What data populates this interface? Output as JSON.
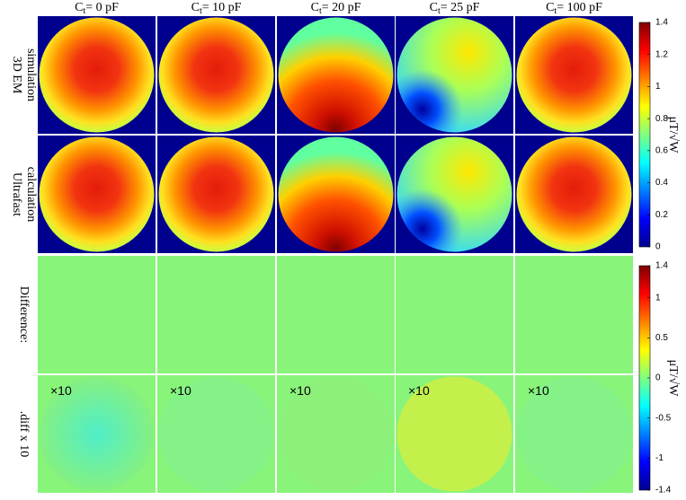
{
  "columns": [
    {
      "main": "C",
      "sub": "t",
      "rest": "= 0 pF"
    },
    {
      "main": "C",
      "sub": "t",
      "rest": "= 10 pF"
    },
    {
      "main": "C",
      "sub": "t",
      "rest": "= 20 pF"
    },
    {
      "main": "C",
      "sub": "t",
      "rest": "= 25 pF"
    },
    {
      "main": "C",
      "sub": "t",
      "rest": "= 100 pF"
    }
  ],
  "rows": [
    {
      "lines": [
        "3D EM",
        "simulation"
      ]
    },
    {
      "lines": [
        "Ultrafast",
        "calculation"
      ]
    },
    {
      "lines": [
        "Difference:"
      ]
    },
    {
      "lines": [
        ".diff x 10"
      ]
    }
  ],
  "annotation": "×10",
  "colorbars": [
    {
      "label": "μT/√W",
      "ylim": [
        0,
        1.4
      ],
      "yticks": [
        0,
        0.2,
        0.4,
        0.6,
        0.8,
        1,
        1.2,
        1.4
      ]
    },
    {
      "label": "μT/√W",
      "ylim": [
        -1.4,
        1.4
      ],
      "yticks": [
        -1.4,
        -1,
        -0.5,
        0,
        0.5,
        1,
        1.4
      ]
    }
  ]
}
